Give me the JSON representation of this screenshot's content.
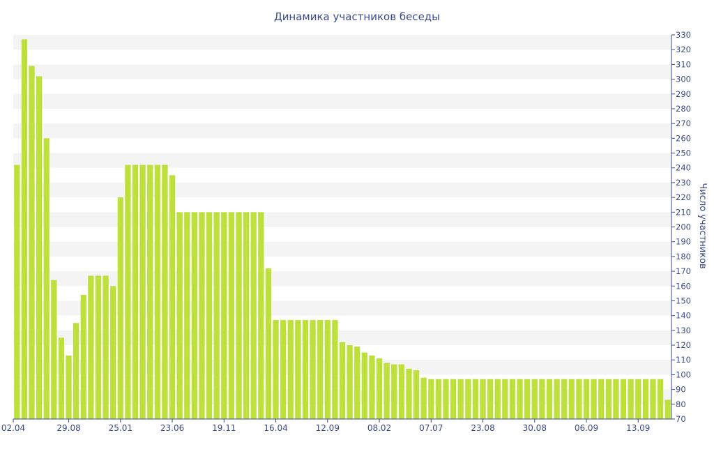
{
  "chart_data": {
    "type": "bar",
    "title": "Динамика участников беседы",
    "xlabel": "",
    "ylabel": "Число участников",
    "ylim": [
      70,
      330
    ],
    "y_ticks": [
      70,
      80,
      90,
      100,
      110,
      120,
      130,
      140,
      150,
      160,
      170,
      180,
      190,
      200,
      210,
      220,
      230,
      240,
      250,
      260,
      270,
      280,
      290,
      300,
      310,
      320,
      330
    ],
    "x_tick_labels": [
      "02.04",
      "29.08",
      "25.01",
      "23.06",
      "19.11",
      "16.04",
      "12.09",
      "08.02",
      "07.07",
      "23.08",
      "30.08",
      "06.09",
      "13.09"
    ],
    "x_tick_indices": [
      0,
      7,
      14,
      21,
      28,
      35,
      42,
      49,
      56,
      63,
      70,
      77,
      84
    ],
    "bar_color": "#bde03a",
    "grid_band_color": "#f4f4f4",
    "values": [
      242,
      327,
      309,
      302,
      260,
      164,
      125,
      113,
      135,
      154,
      167,
      167,
      167,
      160,
      220,
      242,
      242,
      242,
      242,
      242,
      242,
      235,
      210,
      210,
      210,
      210,
      210,
      210,
      210,
      210,
      210,
      210,
      210,
      210,
      172,
      137,
      137,
      137,
      137,
      137,
      137,
      137,
      137,
      137,
      122,
      120,
      119,
      115,
      113,
      111,
      108,
      107,
      107,
      104,
      103,
      98,
      97,
      97,
      97,
      97,
      97,
      97,
      97,
      97,
      97,
      97,
      97,
      97,
      97,
      97,
      97,
      97,
      97,
      97,
      97,
      97,
      97,
      97,
      97,
      97,
      97,
      97,
      97,
      97,
      97,
      97,
      97,
      97,
      83
    ]
  }
}
